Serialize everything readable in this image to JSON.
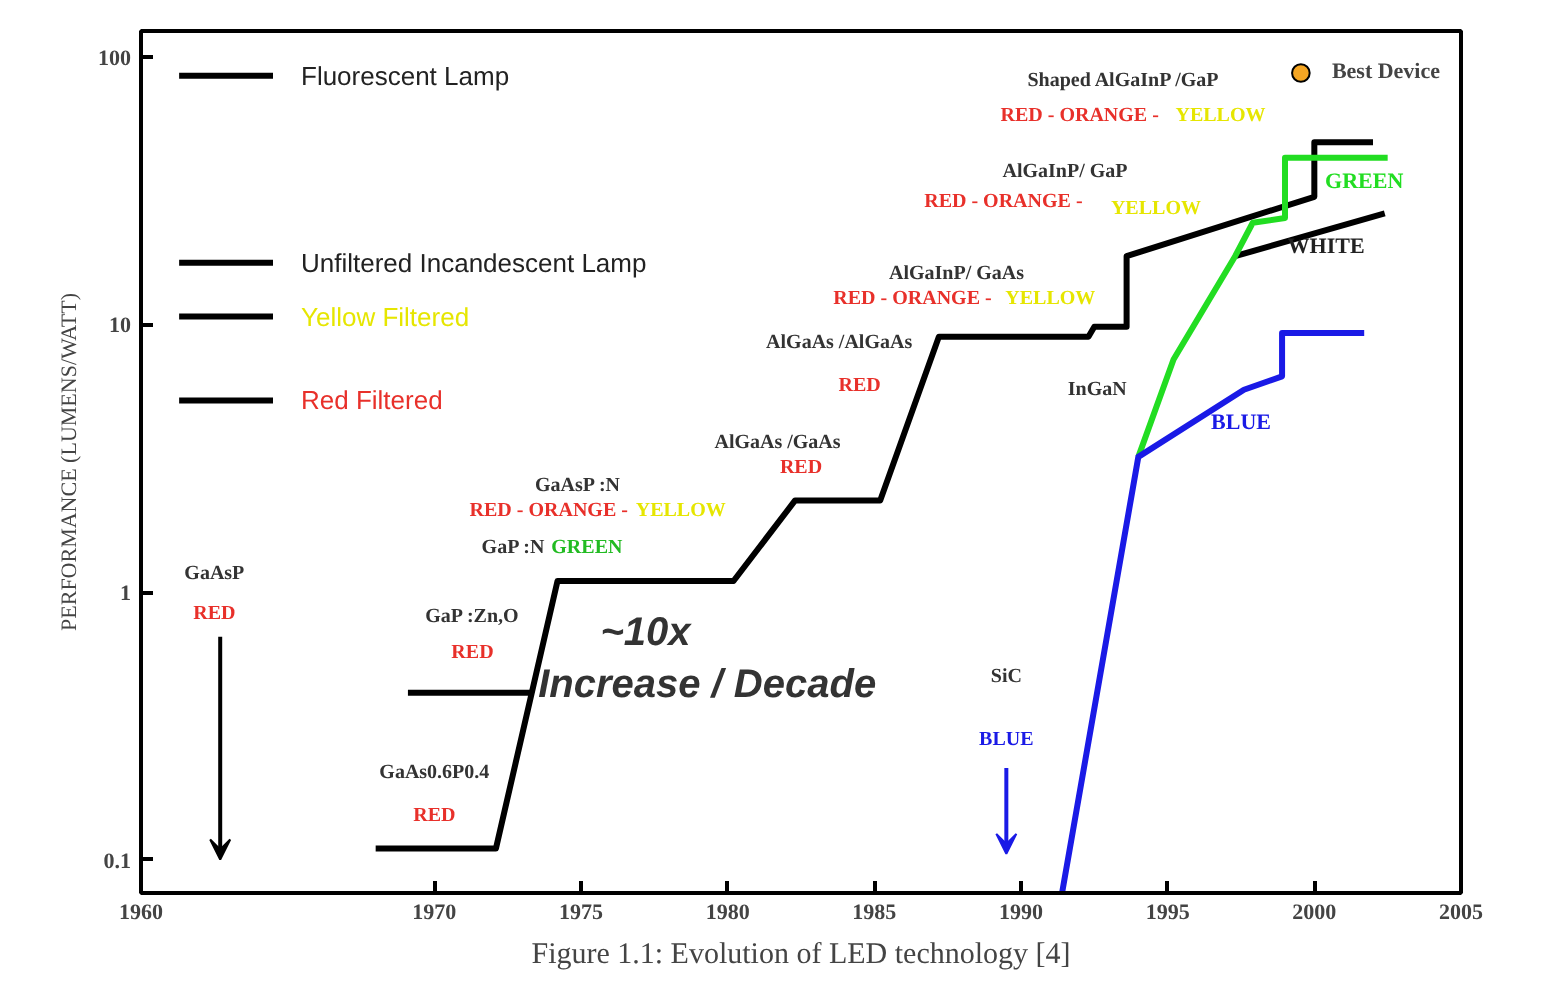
{
  "chart_data": {
    "type": "line",
    "ylabel": "PERFORMANCE (LUMENS/WATT)",
    "xlim": [
      1960,
      2005
    ],
    "xticks": [
      1960,
      1970,
      1975,
      1980,
      1985,
      1990,
      1995,
      2000,
      2005
    ],
    "ylim": [
      0.075,
      125
    ],
    "yticks": [
      0.1,
      1,
      10,
      100
    ],
    "log": "y",
    "grid": false,
    "legend": "top right",
    "marker": "none",
    "line_style": "solid",
    "series": [
      {
        "color": "#000000",
        "x": [
          1968,
          1972.1,
          1974.2,
          1980.2,
          1982.3,
          1985.2,
          1987.2,
          1992.3,
          1992.5,
          1993.6,
          1993.6,
          2000,
          2000,
          2002
        ],
        "values": [
          0.11,
          0.11,
          1.1,
          1.1,
          2.2,
          2.2,
          9,
          9,
          9.8,
          9.8,
          18,
          30,
          48,
          48
        ]
      },
      {
        "color": "#000000",
        "x": [
          1969.1,
          1973.3
        ],
        "values": [
          0.42,
          0.42
        ]
      },
      {
        "name": "WHITE",
        "color": "#000000",
        "x": [
          1997.3,
          2002.4
        ],
        "values": [
          18,
          26
        ]
      },
      {
        "name": "GREEN",
        "color": "#22dd22",
        "x": [
          1994.0,
          1995.2,
          1997.3,
          1997.9,
          1999,
          1999,
          2002.5
        ],
        "values": [
          3.2,
          7.4,
          18,
          24,
          25,
          42,
          42
        ]
      },
      {
        "name": "BLUE",
        "color": "#1a1ae6",
        "x": [
          1991.4,
          1994.0,
          1997.6,
          1998.9,
          1998.9,
          2001.7
        ],
        "values": [
          0.075,
          3.2,
          5.7,
          6.4,
          9.3,
          9.3
        ]
      },
      {
        "name": "Fluorescent Lamp",
        "color": "#000000",
        "x": [
          1961.3,
          1964.5
        ],
        "values": [
          85,
          85
        ]
      },
      {
        "name": "Unfiltered Incandescent Lamp",
        "color": "#000000",
        "x": [
          1961.3,
          1964.5
        ],
        "values": [
          17,
          17
        ]
      },
      {
        "name": "Yellow Filtered",
        "color": "#000000",
        "x": [
          1961.3,
          1964.5
        ],
        "values": [
          10.7,
          10.7
        ]
      },
      {
        "name": "Red Filtered",
        "color": "#000000",
        "x": [
          1961.3,
          1964.5
        ],
        "values": [
          5.2,
          5.2
        ]
      },
      {
        "name": "Best Device",
        "type": "scatter",
        "color": "#f5a623"
      }
    ],
    "annotations": [
      "GaAsP",
      "RED",
      "GaAs0.6P0.4",
      "RED",
      "GaP :Zn,O",
      "RED",
      "GaP :N",
      "GREEN",
      "GaAsP :N",
      "RED - ORANGE -",
      "YELLOW",
      "~10x",
      "Increase / Decade",
      "AlGaAs /GaAs",
      "RED",
      "AlGaAs /AlGaAs",
      "RED",
      "AlGaInP/ GaAs",
      "RED - ORANGE -",
      "YELLOW",
      "AlGaInP/ GaP",
      "RED - ORANGE -",
      "YELLOW",
      "Shaped  AlGaInP /GaP",
      "RED - ORANGE -",
      "YELLOW",
      "InGaN",
      "SiC",
      "BLUE",
      "Figure 1.1: Evolution of LED technology [4]"
    ]
  }
}
